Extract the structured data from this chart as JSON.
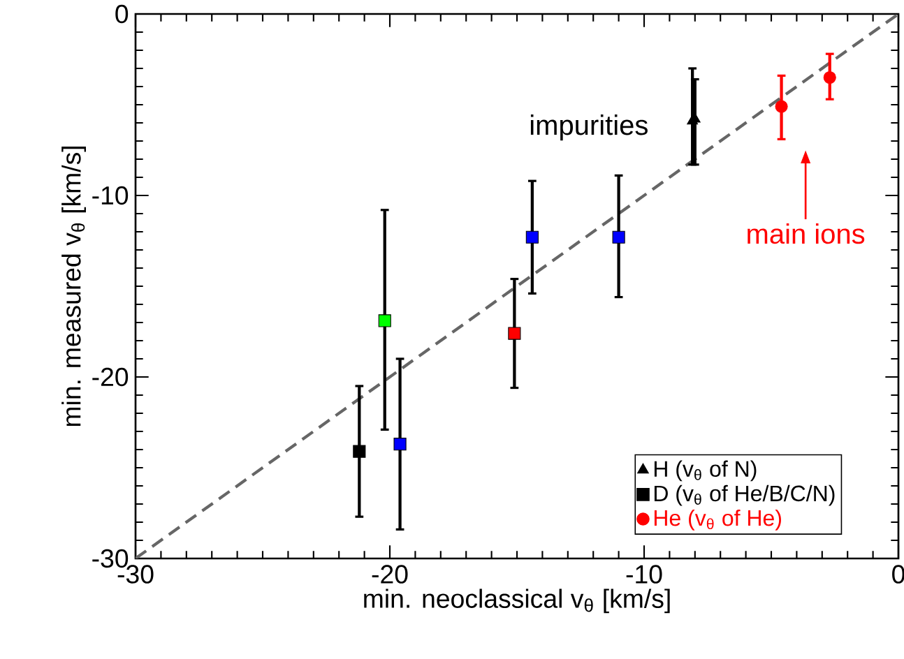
{
  "chart_data": {
    "type": "scatter",
    "xlabel": "min. neoclassical v$_{θ}$ [km/s]",
    "ylabel": "min. measured v$_{θ}$ [km/s]",
    "xlim": [
      -30,
      0
    ],
    "ylim": [
      -30,
      0
    ],
    "xticks": [
      -30,
      -20,
      -10,
      0
    ],
    "yticks": [
      -30,
      -20,
      -10,
      0
    ],
    "grid": false,
    "legend": "bottom right",
    "series": [
      {
        "type": "line",
        "color": "#666666",
        "line_style": "dashed",
        "marker": "none",
        "x": [
          -30,
          0
        ],
        "values": [
          -30,
          0
        ]
      },
      {
        "name": "H (v$_{θ}$ of N)",
        "color": "#000000",
        "marker": "triangle",
        "x": [
          -8.1,
          -8.0
        ],
        "values": [
          -5.9,
          -5.8
        ],
        "errors": [
          [
            -8.3,
            -3.0
          ],
          [
            -8.3,
            -3.6
          ]
        ]
      },
      {
        "name": "D (v$_{θ}$ of He/B/C/N)",
        "color": "#000000",
        "marker": "square",
        "colors": [
          "#000000",
          "#00ff00",
          "#0000ff",
          "#ff0000",
          "#0000ff",
          "#0000ff"
        ],
        "x": [
          -21.2,
          -20.2,
          -19.6,
          -15.1,
          -14.4,
          -11.0
        ],
        "values": [
          -24.1,
          -16.9,
          -23.7,
          -17.6,
          -12.3,
          -12.3
        ],
        "errors": [
          [
            -27.7,
            -20.5
          ],
          [
            -22.9,
            -10.8
          ],
          [
            -28.4,
            -19.0
          ],
          [
            -20.6,
            -14.6
          ],
          [
            -15.4,
            -9.2
          ],
          [
            -15.6,
            -8.9
          ]
        ]
      },
      {
        "name": "He (v$_{θ}$ of He)",
        "color": "#ff0000",
        "marker": "circle",
        "x": [
          -4.6,
          -2.7
        ],
        "values": [
          -5.1,
          -3.5
        ],
        "errors": [
          [
            -6.9,
            -3.4
          ],
          [
            -4.7,
            -2.2
          ]
        ]
      }
    ],
    "annotations": [
      "impurities",
      "main ions"
    ]
  }
}
